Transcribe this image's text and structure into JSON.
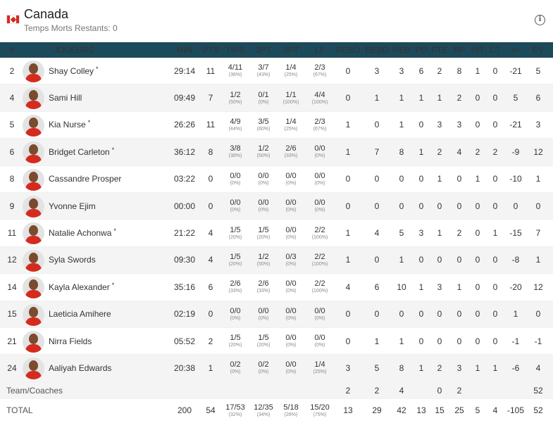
{
  "team": {
    "name": "Canada",
    "timeouts": "Temps Morts Restants: 0"
  },
  "columns": [
    "#",
    "JOUEURS",
    "MIN",
    "PTS",
    "TIRS",
    "2PT",
    "3PT",
    "LF",
    "REBO",
    "REBD",
    "REB",
    "PD",
    "FTE",
    "BP",
    "INT",
    "CT",
    "+/-",
    "EV"
  ],
  "players": [
    {
      "num": "2",
      "name": "Shay Colley",
      "starter": true,
      "min": "29:14",
      "pts": "11",
      "tirs": "4/11",
      "tirs_pct": "(36%)",
      "p2": "3/7",
      "p2_pct": "(43%)",
      "p3": "1/4",
      "p3_pct": "(25%)",
      "lf": "2/3",
      "lf_pct": "(67%)",
      "rebo": "0",
      "rebd": "3",
      "reb": "3",
      "pd": "6",
      "fte": "2",
      "bp": "8",
      "int": "1",
      "ct": "0",
      "pm": "-21",
      "ev": "5"
    },
    {
      "num": "4",
      "name": "Sami Hill",
      "starter": false,
      "min": "09:49",
      "pts": "7",
      "tirs": "1/2",
      "tirs_pct": "(50%)",
      "p2": "0/1",
      "p2_pct": "(0%)",
      "p3": "1/1",
      "p3_pct": "(100%)",
      "lf": "4/4",
      "lf_pct": "(100%)",
      "rebo": "0",
      "rebd": "1",
      "reb": "1",
      "pd": "1",
      "fte": "1",
      "bp": "2",
      "int": "0",
      "ct": "0",
      "pm": "5",
      "ev": "6"
    },
    {
      "num": "5",
      "name": "Kia Nurse",
      "starter": true,
      "min": "26:26",
      "pts": "11",
      "tirs": "4/9",
      "tirs_pct": "(44%)",
      "p2": "3/5",
      "p2_pct": "(60%)",
      "p3": "1/4",
      "p3_pct": "(25%)",
      "lf": "2/3",
      "lf_pct": "(67%)",
      "rebo": "1",
      "rebd": "0",
      "reb": "1",
      "pd": "0",
      "fte": "3",
      "bp": "3",
      "int": "0",
      "ct": "0",
      "pm": "-21",
      "ev": "3"
    },
    {
      "num": "6",
      "name": "Bridget Carleton",
      "starter": true,
      "min": "36:12",
      "pts": "8",
      "tirs": "3/8",
      "tirs_pct": "(38%)",
      "p2": "1/2",
      "p2_pct": "(50%)",
      "p3": "2/6",
      "p3_pct": "(33%)",
      "lf": "0/0",
      "lf_pct": "(0%)",
      "rebo": "1",
      "rebd": "7",
      "reb": "8",
      "pd": "1",
      "fte": "2",
      "bp": "4",
      "int": "2",
      "ct": "2",
      "pm": "-9",
      "ev": "12"
    },
    {
      "num": "8",
      "name": "Cassandre Prosper",
      "starter": false,
      "min": "03:22",
      "pts": "0",
      "tirs": "0/0",
      "tirs_pct": "(0%)",
      "p2": "0/0",
      "p2_pct": "(0%)",
      "p3": "0/0",
      "p3_pct": "(0%)",
      "lf": "0/0",
      "lf_pct": "(0%)",
      "rebo": "0",
      "rebd": "0",
      "reb": "0",
      "pd": "0",
      "fte": "1",
      "bp": "0",
      "int": "1",
      "ct": "0",
      "pm": "-10",
      "ev": "1"
    },
    {
      "num": "9",
      "name": "Yvonne Ejim",
      "starter": false,
      "min": "00:00",
      "pts": "0",
      "tirs": "0/0",
      "tirs_pct": "(0%)",
      "p2": "0/0",
      "p2_pct": "(0%)",
      "p3": "0/0",
      "p3_pct": "(0%)",
      "lf": "0/0",
      "lf_pct": "(0%)",
      "rebo": "0",
      "rebd": "0",
      "reb": "0",
      "pd": "0",
      "fte": "0",
      "bp": "0",
      "int": "0",
      "ct": "0",
      "pm": "0",
      "ev": "0"
    },
    {
      "num": "11",
      "name": "Natalie Achonwa",
      "starter": true,
      "min": "21:22",
      "pts": "4",
      "tirs": "1/5",
      "tirs_pct": "(20%)",
      "p2": "1/5",
      "p2_pct": "(20%)",
      "p3": "0/0",
      "p3_pct": "(0%)",
      "lf": "2/2",
      "lf_pct": "(100%)",
      "rebo": "1",
      "rebd": "4",
      "reb": "5",
      "pd": "3",
      "fte": "1",
      "bp": "2",
      "int": "0",
      "ct": "1",
      "pm": "-15",
      "ev": "7"
    },
    {
      "num": "12",
      "name": "Syla Swords",
      "starter": false,
      "min": "09:30",
      "pts": "4",
      "tirs": "1/5",
      "tirs_pct": "(20%)",
      "p2": "1/2",
      "p2_pct": "(50%)",
      "p3": "0/3",
      "p3_pct": "(0%)",
      "lf": "2/2",
      "lf_pct": "(100%)",
      "rebo": "1",
      "rebd": "0",
      "reb": "1",
      "pd": "0",
      "fte": "0",
      "bp": "0",
      "int": "0",
      "ct": "0",
      "pm": "-8",
      "ev": "1"
    },
    {
      "num": "14",
      "name": "Kayla Alexander",
      "starter": true,
      "min": "35:16",
      "pts": "6",
      "tirs": "2/6",
      "tirs_pct": "(33%)",
      "p2": "2/6",
      "p2_pct": "(33%)",
      "p3": "0/0",
      "p3_pct": "(0%)",
      "lf": "2/2",
      "lf_pct": "(100%)",
      "rebo": "4",
      "rebd": "6",
      "reb": "10",
      "pd": "1",
      "fte": "3",
      "bp": "1",
      "int": "0",
      "ct": "0",
      "pm": "-20",
      "ev": "12"
    },
    {
      "num": "15",
      "name": "Laeticia Amihere",
      "starter": false,
      "min": "02:19",
      "pts": "0",
      "tirs": "0/0",
      "tirs_pct": "(0%)",
      "p2": "0/0",
      "p2_pct": "(0%)",
      "p3": "0/0",
      "p3_pct": "(0%)",
      "lf": "0/0",
      "lf_pct": "(0%)",
      "rebo": "0",
      "rebd": "0",
      "reb": "0",
      "pd": "0",
      "fte": "0",
      "bp": "0",
      "int": "0",
      "ct": "0",
      "pm": "1",
      "ev": "0"
    },
    {
      "num": "21",
      "name": "Nirra Fields",
      "starter": false,
      "min": "05:52",
      "pts": "2",
      "tirs": "1/5",
      "tirs_pct": "(20%)",
      "p2": "1/5",
      "p2_pct": "(20%)",
      "p3": "0/0",
      "p3_pct": "(0%)",
      "lf": "0/0",
      "lf_pct": "(0%)",
      "rebo": "0",
      "rebd": "1",
      "reb": "1",
      "pd": "0",
      "fte": "0",
      "bp": "0",
      "int": "0",
      "ct": "0",
      "pm": "-1",
      "ev": "-1"
    },
    {
      "num": "24",
      "name": "Aaliyah Edwards",
      "starter": false,
      "min": "20:38",
      "pts": "1",
      "tirs": "0/2",
      "tirs_pct": "(0%)",
      "p2": "0/2",
      "p2_pct": "(0%)",
      "p3": "0/0",
      "p3_pct": "(0%)",
      "lf": "1/4",
      "lf_pct": "(25%)",
      "rebo": "3",
      "rebd": "5",
      "reb": "8",
      "pd": "1",
      "fte": "2",
      "bp": "3",
      "int": "1",
      "ct": "1",
      "pm": "-6",
      "ev": "4"
    }
  ],
  "coaches": {
    "label": "Team/Coaches",
    "rebo": "2",
    "rebd": "2",
    "reb": "4",
    "pd": "",
    "fte": "0",
    "bp": "2",
    "int": "",
    "ct": "",
    "pm": "",
    "ev": "52"
  },
  "total": {
    "label": "TOTAL",
    "min": "200",
    "pts": "54",
    "tirs": "17/53",
    "tirs_pct": "(32%)",
    "p2": "12/35",
    "p2_pct": "(34%)",
    "p3": "5/18",
    "p3_pct": "(28%)",
    "lf": "15/20",
    "lf_pct": "(75%)",
    "rebo": "13",
    "rebd": "29",
    "reb": "42",
    "pd": "13",
    "fte": "15",
    "bp": "25",
    "int": "5",
    "ct": "4",
    "pm": "-105",
    "ev": "52"
  },
  "colors": {
    "header_bg": "#1d4a5a",
    "row_alt": "#f4f4f4",
    "flag_red": "#d52b1e"
  }
}
